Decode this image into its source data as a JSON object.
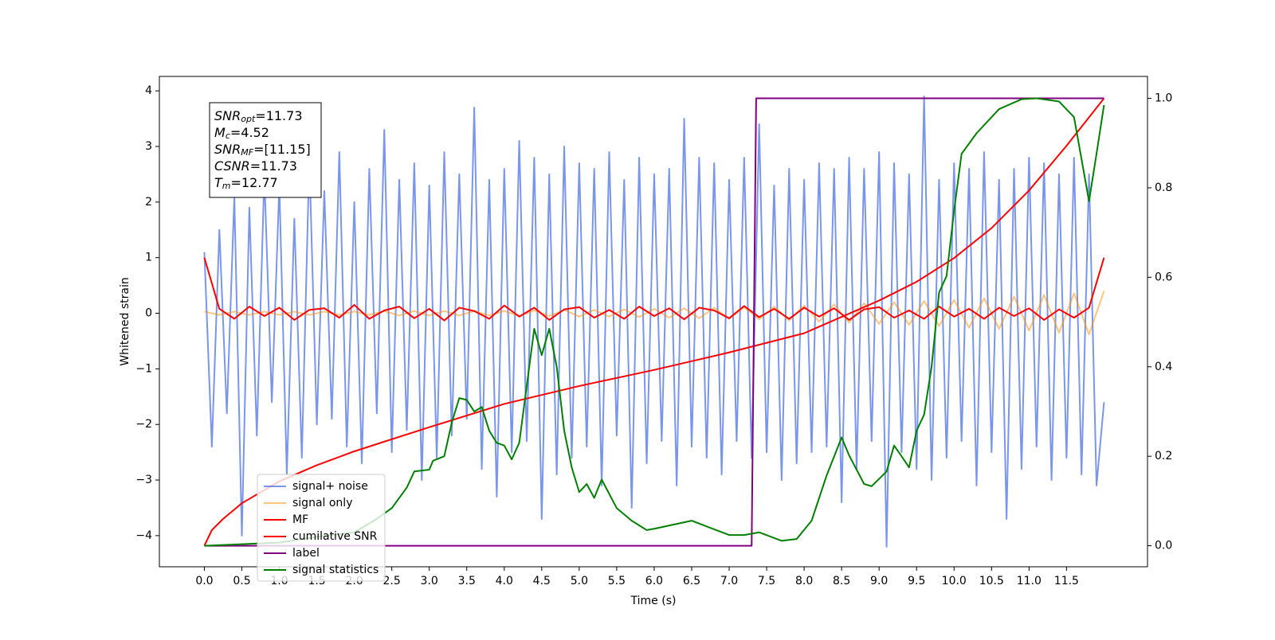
{
  "chart_data": {
    "type": "line",
    "xlabel": "Time (s)",
    "ylabel": "Whitened strain",
    "xlim": [
      -0.6,
      12.58
    ],
    "ylim": [
      -4.56,
      4.26
    ],
    "y2lim": [
      -0.047,
      1.049
    ],
    "xticks": [
      {
        "value": 0,
        "label": "0.0"
      },
      0.5,
      {
        "value": 1,
        "label": "1.0"
      },
      1.5,
      {
        "value": 2,
        "label": "2.0"
      },
      2.5,
      {
        "value": 3,
        "label": "3.0"
      },
      3.5,
      {
        "value": 4,
        "label": "4.0"
      },
      4.5,
      {
        "value": 5,
        "label": "5.0"
      },
      5.5,
      {
        "value": 6,
        "label": "6.0"
      },
      6.5,
      {
        "value": 7,
        "label": "7.0"
      },
      7.5,
      {
        "value": 8,
        "label": "8.0"
      },
      8.5,
      {
        "value": 9,
        "label": "9.0"
      },
      9.5,
      {
        "value": 10,
        "label": "10.0"
      },
      10.5,
      {
        "value": 11,
        "label": "11.0"
      },
      11.5
    ],
    "yticks": [
      {
        "value": -4,
        "label": "−4"
      },
      {
        "value": -3,
        "label": "−3"
      },
      {
        "value": -2,
        "label": "−2"
      },
      {
        "value": -1,
        "label": "−1"
      },
      0,
      1,
      2,
      3,
      4
    ],
    "y2ticks": [
      {
        "value": 0,
        "label": "0.0"
      },
      0.2,
      0.4,
      0.6,
      0.8,
      {
        "value": 1,
        "label": "1.0"
      }
    ],
    "legend_loc": "lower left",
    "annotation": [
      {
        "var": "SNR",
        "sub": "opt",
        "text": "=11.73"
      },
      {
        "var": "M",
        "sub": "c",
        "text": "=4.52"
      },
      {
        "var": "SNR",
        "sub": "MF",
        "text": "=[11.15]"
      },
      {
        "var": "CSNR",
        "text": "=11.73"
      },
      {
        "var": "T",
        "sub": "m",
        "text": "=12.77"
      }
    ],
    "series": [
      {
        "name": "signal+ noise",
        "color": "#4169e1",
        "opacity": 0.7,
        "x": [
          0,
          0.1,
          0.2,
          0.3,
          0.4,
          0.5,
          0.6,
          0.7,
          0.8,
          0.9,
          1,
          1.1,
          1.2,
          1.3,
          1.4,
          1.5,
          1.6,
          1.7,
          1.8,
          1.9,
          2,
          2.1,
          2.2,
          2.3,
          2.4,
          2.5,
          2.6,
          2.7,
          2.8,
          2.9,
          3,
          3.1,
          3.2,
          3.3,
          3.4,
          3.5,
          3.6,
          3.7,
          3.8,
          3.9,
          4,
          4.1,
          4.2,
          4.3,
          4.4,
          4.5,
          4.6,
          4.7,
          4.8,
          4.9,
          5,
          5.1,
          5.2,
          5.3,
          5.4,
          5.5,
          5.6,
          5.7,
          5.8,
          5.9,
          6,
          6.1,
          6.2,
          6.3,
          6.4,
          6.5,
          6.6,
          6.7,
          6.8,
          6.9,
          7,
          7.1,
          7.2,
          7.3,
          7.4,
          7.5,
          7.6,
          7.7,
          7.8,
          7.9,
          8,
          8.1,
          8.2,
          8.3,
          8.4,
          8.5,
          8.6,
          8.7,
          8.8,
          8.9,
          9,
          9.1,
          9.2,
          9.3,
          9.4,
          9.5,
          9.6,
          9.7,
          9.8,
          9.9,
          10,
          10.1,
          10.2,
          10.3,
          10.4,
          10.5,
          10.6,
          10.7,
          10.8,
          10.9,
          11,
          11.1,
          11.2,
          11.3,
          11.4,
          11.5,
          11.6,
          11.7,
          11.8,
          11.9,
          12
        ],
        "values": [
          1.1,
          -2.4,
          1.5,
          -1.8,
          2.1,
          -4.0,
          1.9,
          -2.2,
          2.5,
          -1.6,
          2.3,
          -2.9,
          1.7,
          -2.6,
          2.8,
          -2.0,
          2.2,
          -1.9,
          2.9,
          -2.4,
          2.0,
          -2.7,
          2.6,
          -1.8,
          3.3,
          -2.5,
          2.4,
          -2.1,
          2.7,
          -3.0,
          2.3,
          -2.6,
          2.9,
          -2.2,
          2.5,
          -1.9,
          3.7,
          -2.8,
          2.4,
          -3.3,
          2.6,
          -2.5,
          3.1,
          -2.3,
          2.8,
          -3.7,
          2.5,
          -2.9,
          3.0,
          -2.6,
          2.7,
          -2.4,
          2.6,
          -3.1,
          2.9,
          -2.2,
          2.4,
          -3.5,
          2.8,
          -2.7,
          2.5,
          -2.3,
          2.6,
          -3.1,
          3.5,
          -2.4,
          2.8,
          -2.6,
          2.7,
          -2.9,
          2.4,
          -2.3,
          2.8,
          -2.6,
          3.4,
          -2.5,
          2.3,
          -3.0,
          2.6,
          -2.7,
          2.4,
          -2.5,
          2.7,
          -2.4,
          2.6,
          -3.4,
          2.8,
          -2.8,
          2.6,
          -2.3,
          2.9,
          -4.2,
          2.7,
          -2.5,
          2.5,
          -2.8,
          3.9,
          -3.0,
          2.4,
          -2.6,
          2.7,
          -2.3,
          2.6,
          -3.1,
          2.9,
          -2.5,
          2.4,
          -3.7,
          2.6,
          -2.8,
          2.8,
          -2.4,
          2.7,
          -3.0,
          2.5,
          -2.6,
          2.8,
          -2.9,
          2.5,
          -3.1,
          -1.6
        ]
      },
      {
        "name": "signal only",
        "color": "#ff8c00",
        "opacity": 0.5,
        "x": [
          0,
          0.2,
          0.4,
          0.6,
          0.8,
          1,
          1.2,
          1.4,
          1.6,
          1.8,
          2,
          2.2,
          2.4,
          2.6,
          2.8,
          3,
          3.2,
          3.4,
          3.6,
          3.8,
          4,
          4.2,
          4.4,
          4.6,
          4.8,
          5,
          5.2,
          5.4,
          5.6,
          5.8,
          6,
          6.2,
          6.4,
          6.6,
          6.8,
          7,
          7.2,
          7.4,
          7.6,
          7.8,
          8,
          8.2,
          8.4,
          8.6,
          8.8,
          9,
          9.2,
          9.4,
          9.6,
          9.8,
          10,
          10.2,
          10.4,
          10.6,
          10.8,
          11,
          11.2,
          11.4,
          11.6,
          11.8,
          12
        ],
        "values": [
          0.03,
          -0.03,
          0.03,
          -0.03,
          0.03,
          -0.03,
          0.03,
          -0.03,
          0.03,
          -0.03,
          0.03,
          -0.03,
          0.04,
          -0.04,
          0.04,
          -0.04,
          0.04,
          -0.04,
          0.04,
          -0.04,
          0.04,
          -0.05,
          0.05,
          -0.05,
          0.06,
          -0.06,
          0.06,
          -0.06,
          0.07,
          -0.07,
          0.08,
          -0.08,
          0.09,
          -0.09,
          0.1,
          -0.1,
          0.11,
          -0.11,
          0.12,
          -0.13,
          0.14,
          -0.15,
          0.16,
          -0.17,
          0.18,
          -0.19,
          0.2,
          -0.21,
          0.22,
          -0.23,
          0.24,
          -0.26,
          0.27,
          -0.28,
          0.3,
          -0.31,
          0.33,
          -0.35,
          0.36,
          -0.38,
          0.4
        ]
      },
      {
        "name": "MF",
        "color": "#ff0000",
        "opacity": 1,
        "x": [
          0,
          0.2,
          0.4,
          0.6,
          0.8,
          1,
          1.2,
          1.4,
          1.6,
          1.8,
          2,
          2.2,
          2.4,
          2.6,
          2.8,
          3,
          3.2,
          3.4,
          3.6,
          3.8,
          4,
          4.2,
          4.4,
          4.6,
          4.8,
          5,
          5.2,
          5.4,
          5.6,
          5.8,
          6,
          6.2,
          6.4,
          6.6,
          6.8,
          7,
          7.2,
          7.4,
          7.6,
          7.8,
          8,
          8.2,
          8.4,
          8.6,
          8.8,
          9,
          9.2,
          9.4,
          9.6,
          9.8,
          10,
          10.2,
          10.4,
          10.6,
          10.8,
          11,
          11.2,
          11.4,
          11.6,
          11.8,
          12
        ],
        "values": [
          1.0,
          0.08,
          -0.1,
          0.12,
          -0.05,
          0.1,
          -0.12,
          0.06,
          0.09,
          -0.08,
          0.15,
          -0.1,
          0.05,
          0.12,
          -0.09,
          0.08,
          -0.13,
          0.1,
          0.04,
          -0.1,
          0.14,
          -0.06,
          0.1,
          -0.12,
          0.07,
          0.11,
          -0.08,
          0.06,
          -0.1,
          0.12,
          -0.05,
          0.09,
          -0.11,
          0.1,
          0.05,
          -0.09,
          0.13,
          -0.07,
          0.08,
          -0.1,
          0.1,
          -0.06,
          0.09,
          -0.12,
          0.07,
          0.11,
          -0.08,
          0.05,
          -0.1,
          0.12,
          -0.06,
          0.08,
          -0.1,
          0.1,
          -0.05,
          0.09,
          -0.12,
          0.07,
          -0.08,
          0.1,
          1.0
        ]
      },
      {
        "name": "cumilative SNR",
        "color": "#ff0000",
        "opacity": 1,
        "axis": "y2",
        "x": [
          0,
          0.1,
          0.25,
          0.5,
          1,
          1.5,
          2,
          3,
          4,
          5,
          6,
          7,
          8,
          9,
          9.5,
          10,
          10.5,
          11,
          11.5,
          12
        ],
        "values": [
          0,
          0.035,
          0.06,
          0.095,
          0.144,
          0.18,
          0.211,
          0.265,
          0.317,
          0.357,
          0.393,
          0.432,
          0.475,
          0.548,
          0.59,
          0.643,
          0.71,
          0.794,
          0.894,
          1.0
        ]
      },
      {
        "name": "label",
        "color": "#800080",
        "opacity": 1,
        "axis": "y2",
        "x": [
          0,
          7.3,
          7.36,
          12
        ],
        "values": [
          0,
          0,
          1,
          1
        ]
      },
      {
        "name": "signal statistics",
        "color": "#008000",
        "opacity": 1,
        "axis": "y2",
        "x": [
          0,
          1,
          1.5,
          2,
          2.3,
          2.5,
          2.7,
          2.8,
          3,
          3.05,
          3.2,
          3.3,
          3.4,
          3.5,
          3.6,
          3.7,
          3.8,
          3.9,
          4,
          4.1,
          4.2,
          4.3,
          4.4,
          4.5,
          4.6,
          4.7,
          4.8,
          4.9,
          5,
          5.1,
          5.2,
          5.3,
          5.5,
          5.7,
          5.9,
          6,
          6.5,
          7,
          7.2,
          7.4,
          7.7,
          7.9,
          8.1,
          8.3,
          8.5,
          8.6,
          8.8,
          8.9,
          9.1,
          9.2,
          9.3,
          9.4,
          9.5,
          9.6,
          9.7,
          9.8,
          9.9,
          10,
          10.1,
          10.3,
          10.6,
          10.9,
          11.1,
          11.4,
          11.6,
          11.8,
          11.9,
          12
        ],
        "values": [
          0,
          0.007,
          0.02,
          0.03,
          0.06,
          0.084,
          0.13,
          0.166,
          0.17,
          0.19,
          0.2,
          0.275,
          0.33,
          0.326,
          0.3,
          0.31,
          0.257,
          0.23,
          0.224,
          0.193,
          0.23,
          0.357,
          0.485,
          0.426,
          0.485,
          0.4,
          0.257,
          0.175,
          0.12,
          0.138,
          0.107,
          0.148,
          0.084,
          0.056,
          0.035,
          0.038,
          0.056,
          0.024,
          0.024,
          0.03,
          0.011,
          0.015,
          0.056,
          0.157,
          0.242,
          0.202,
          0.138,
          0.133,
          0.166,
          0.224,
          0.2,
          0.175,
          0.257,
          0.293,
          0.4,
          0.566,
          0.603,
          0.749,
          0.876,
          0.922,
          0.976,
          0.998,
          1.0,
          0.993,
          0.958,
          0.77,
          0.876,
          0.985
        ]
      }
    ]
  }
}
